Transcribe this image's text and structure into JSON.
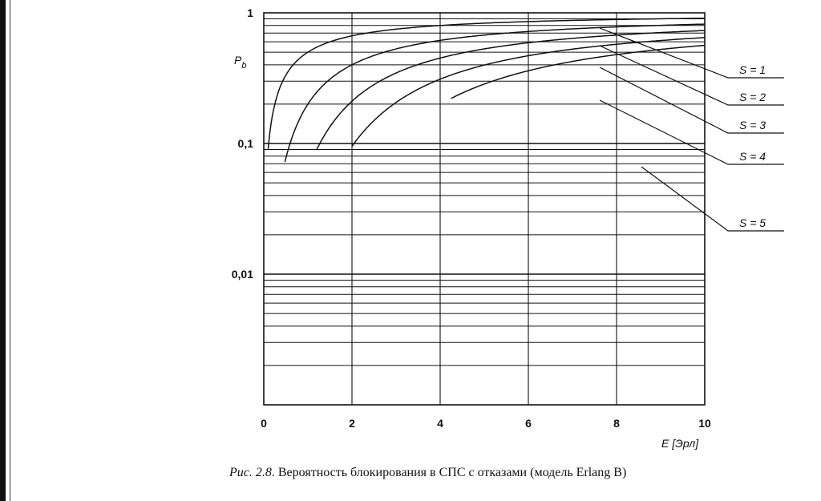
{
  "chart_data": {
    "type": "line",
    "title": "",
    "xlabel": "E [Эрл]",
    "ylabel": "Pb",
    "xlim": [
      0,
      10
    ],
    "ylim": [
      0.001,
      1
    ],
    "yscale": "log",
    "x_ticks": [
      "0",
      "2",
      "4",
      "6",
      "8",
      "10"
    ],
    "y_ticks": [
      "1",
      "0,1",
      "0,01"
    ],
    "grid": true,
    "series": [
      {
        "name": "S = 1",
        "x": [
          0.1,
          0.2,
          0.5,
          1,
          2,
          3,
          4,
          6,
          8,
          10
        ],
        "y": [
          0.091,
          0.167,
          0.333,
          0.5,
          0.667,
          0.75,
          0.8,
          0.857,
          0.889,
          0.909
        ]
      },
      {
        "name": "S = 2",
        "x": [
          0.5,
          0.7,
          1,
          1.5,
          2,
          3,
          4,
          6,
          8,
          10
        ],
        "y": [
          0.0769,
          0.1301,
          0.2,
          0.3103,
          0.4,
          0.5294,
          0.6154,
          0.72,
          0.7805,
          0.8197
        ]
      },
      {
        "name": "S = 3",
        "x": [
          1.2,
          1.5,
          2,
          3,
          4,
          5,
          6,
          8,
          10
        ],
        "y": [
          0.0795,
          0.0917,
          0.1905,
          0.3462,
          0.4507,
          0.5249,
          0.5902,
          0.6752,
          0.7321
        ]
      },
      {
        "name": "S = 4",
        "x": [
          2,
          2.5,
          3,
          4,
          5,
          6,
          8,
          10
        ],
        "y": [
          0.0667,
          0.1101,
          0.2061,
          0.3107,
          0.3983,
          0.4703,
          0.5738,
          0.6468
        ]
      },
      {
        "name": "S = 5",
        "x": [
          4.3,
          5,
          6,
          7,
          8,
          9,
          10
        ],
        "y": [
          0.0875,
          0.1071,
          0.1983,
          0.2757,
          0.3472,
          0.4095,
          0.4627
        ]
      }
    ],
    "series_labels": [
      "S = 1",
      "S = 2",
      "S = 3",
      "S = 4",
      "S = 5"
    ]
  },
  "caption": {
    "figure_ref": "Рис. 2.8",
    "text": ". Вероятность блокирования в СПС с отказами (модель Erlang B)"
  },
  "colors": {
    "ink": "#111111",
    "paper": "#ffffff"
  }
}
